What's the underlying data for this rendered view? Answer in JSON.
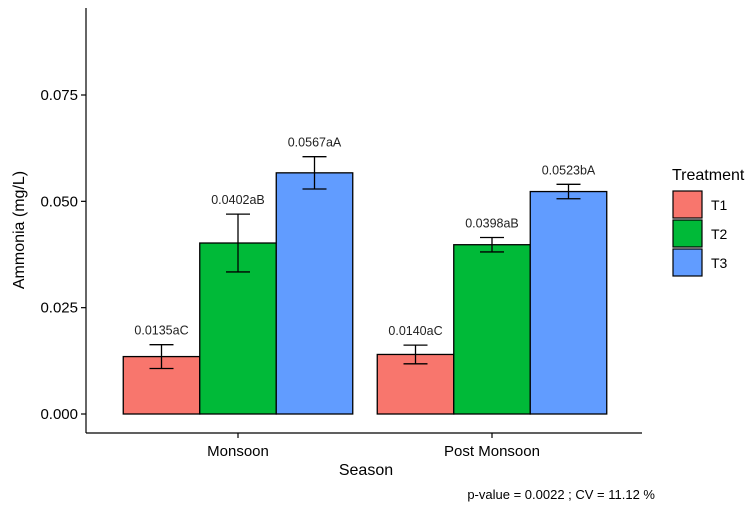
{
  "chart_data": {
    "type": "bar",
    "categories": [
      "Monsoon",
      "Post Monsoon"
    ],
    "series": [
      {
        "name": "T1",
        "color": "#F8766D",
        "values": [
          0.0135,
          0.014
        ],
        "error": [
          0.0028,
          0.0022
        ],
        "labels": [
          "0.0135aC",
          "0.0140aC"
        ]
      },
      {
        "name": "T2",
        "color": "#00BA38",
        "values": [
          0.0402,
          0.0398
        ],
        "error": [
          0.0068,
          0.0017
        ],
        "labels": [
          "0.0402aB",
          "0.0398aB"
        ]
      },
      {
        "name": "T3",
        "color": "#619CFF",
        "values": [
          0.0567,
          0.0523
        ],
        "error": [
          0.0038,
          0.0017
        ],
        "labels": [
          "0.0567aA",
          "0.0523bA"
        ]
      }
    ],
    "xlabel": "Season",
    "ylabel": "Ammonia (mg/L)",
    "ylim": [
      0,
      0.0925
    ],
    "yticks": [
      0,
      0.025,
      0.05,
      0.075
    ],
    "ytick_labels": [
      "0.000",
      "0.025",
      "0.050",
      "0.075"
    ],
    "grid": false,
    "legend": {
      "title": "Treatment",
      "position": "right"
    },
    "caption": "p-value  = 0.0022 ; CV =  11.12 %"
  }
}
